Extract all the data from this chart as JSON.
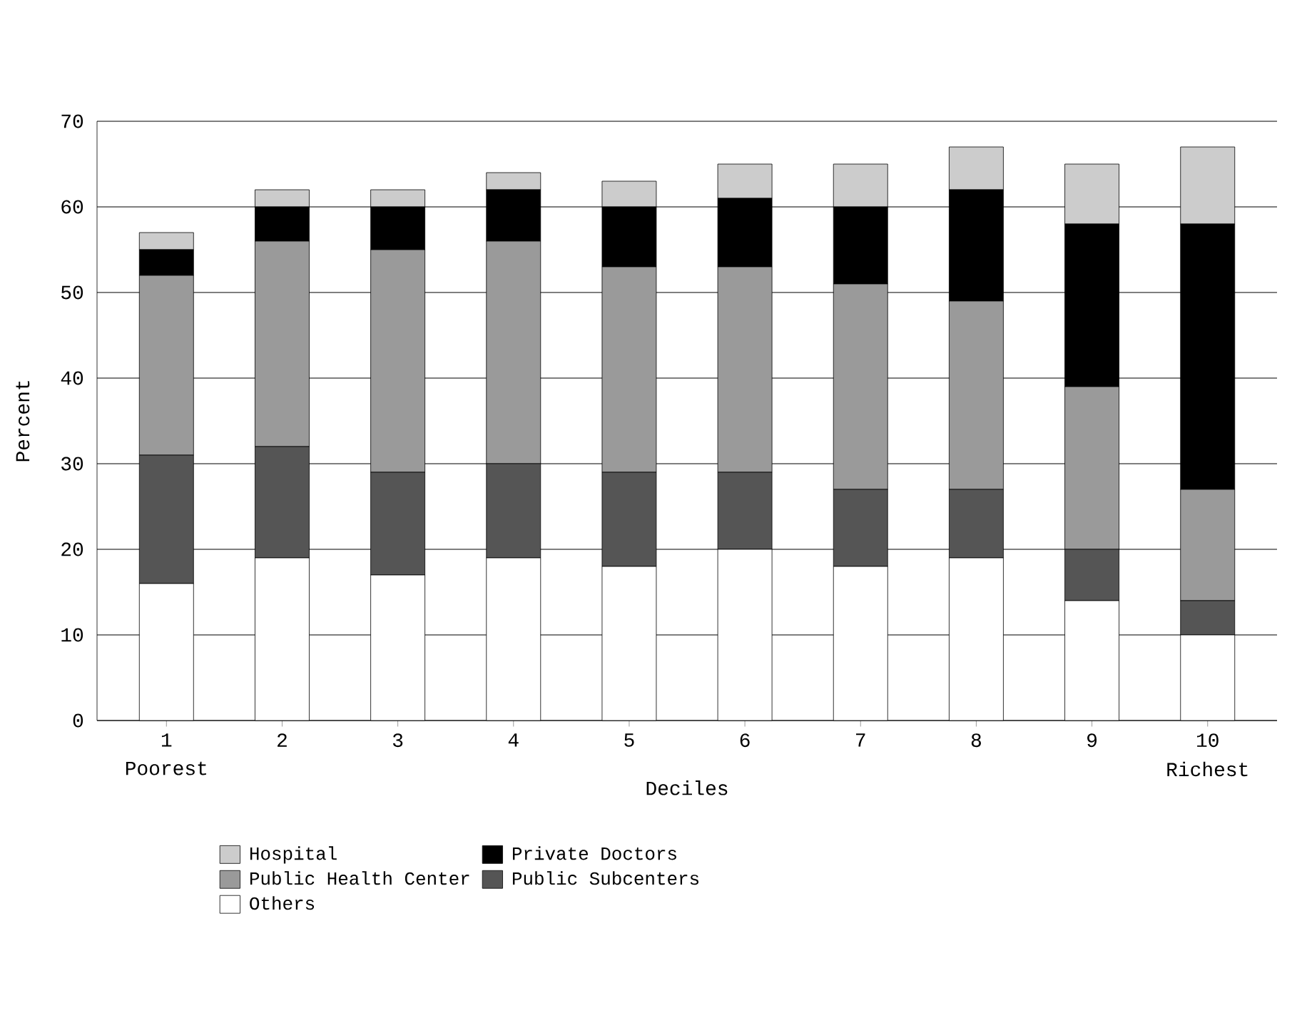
{
  "chart_data": {
    "type": "bar",
    "stacked": true,
    "xlabel": "Deciles",
    "ylabel": "Percent",
    "categories": [
      "1",
      "2",
      "3",
      "4",
      "5",
      "6",
      "7",
      "8",
      "9",
      "10"
    ],
    "series": [
      {
        "name": "Others",
        "color": "#ffffff",
        "values": [
          16,
          19,
          17,
          19,
          18,
          20,
          18,
          19,
          14,
          10
        ]
      },
      {
        "name": "Public Subcenters",
        "color": "#555555",
        "values": [
          15,
          13,
          12,
          11,
          11,
          9,
          9,
          8,
          6,
          4
        ]
      },
      {
        "name": "Public Health Center",
        "color": "#9a9a9a",
        "values": [
          21,
          24,
          26,
          26,
          24,
          24,
          24,
          22,
          19,
          13
        ]
      },
      {
        "name": "Private Doctors",
        "color": "#000000",
        "values": [
          3,
          4,
          5,
          6,
          7,
          8,
          9,
          13,
          19,
          31
        ]
      },
      {
        "name": "Hospital",
        "color": "#cccccc",
        "values": [
          2,
          2,
          2,
          2,
          3,
          4,
          5,
          5,
          7,
          9
        ]
      }
    ],
    "annotations": [
      "Poorest",
      "Richest"
    ],
    "ylim": [
      0,
      70
    ],
    "yticks": [
      0,
      10,
      20,
      30,
      40,
      50,
      60,
      70
    ],
    "grid": "y",
    "legend": "bottom"
  }
}
